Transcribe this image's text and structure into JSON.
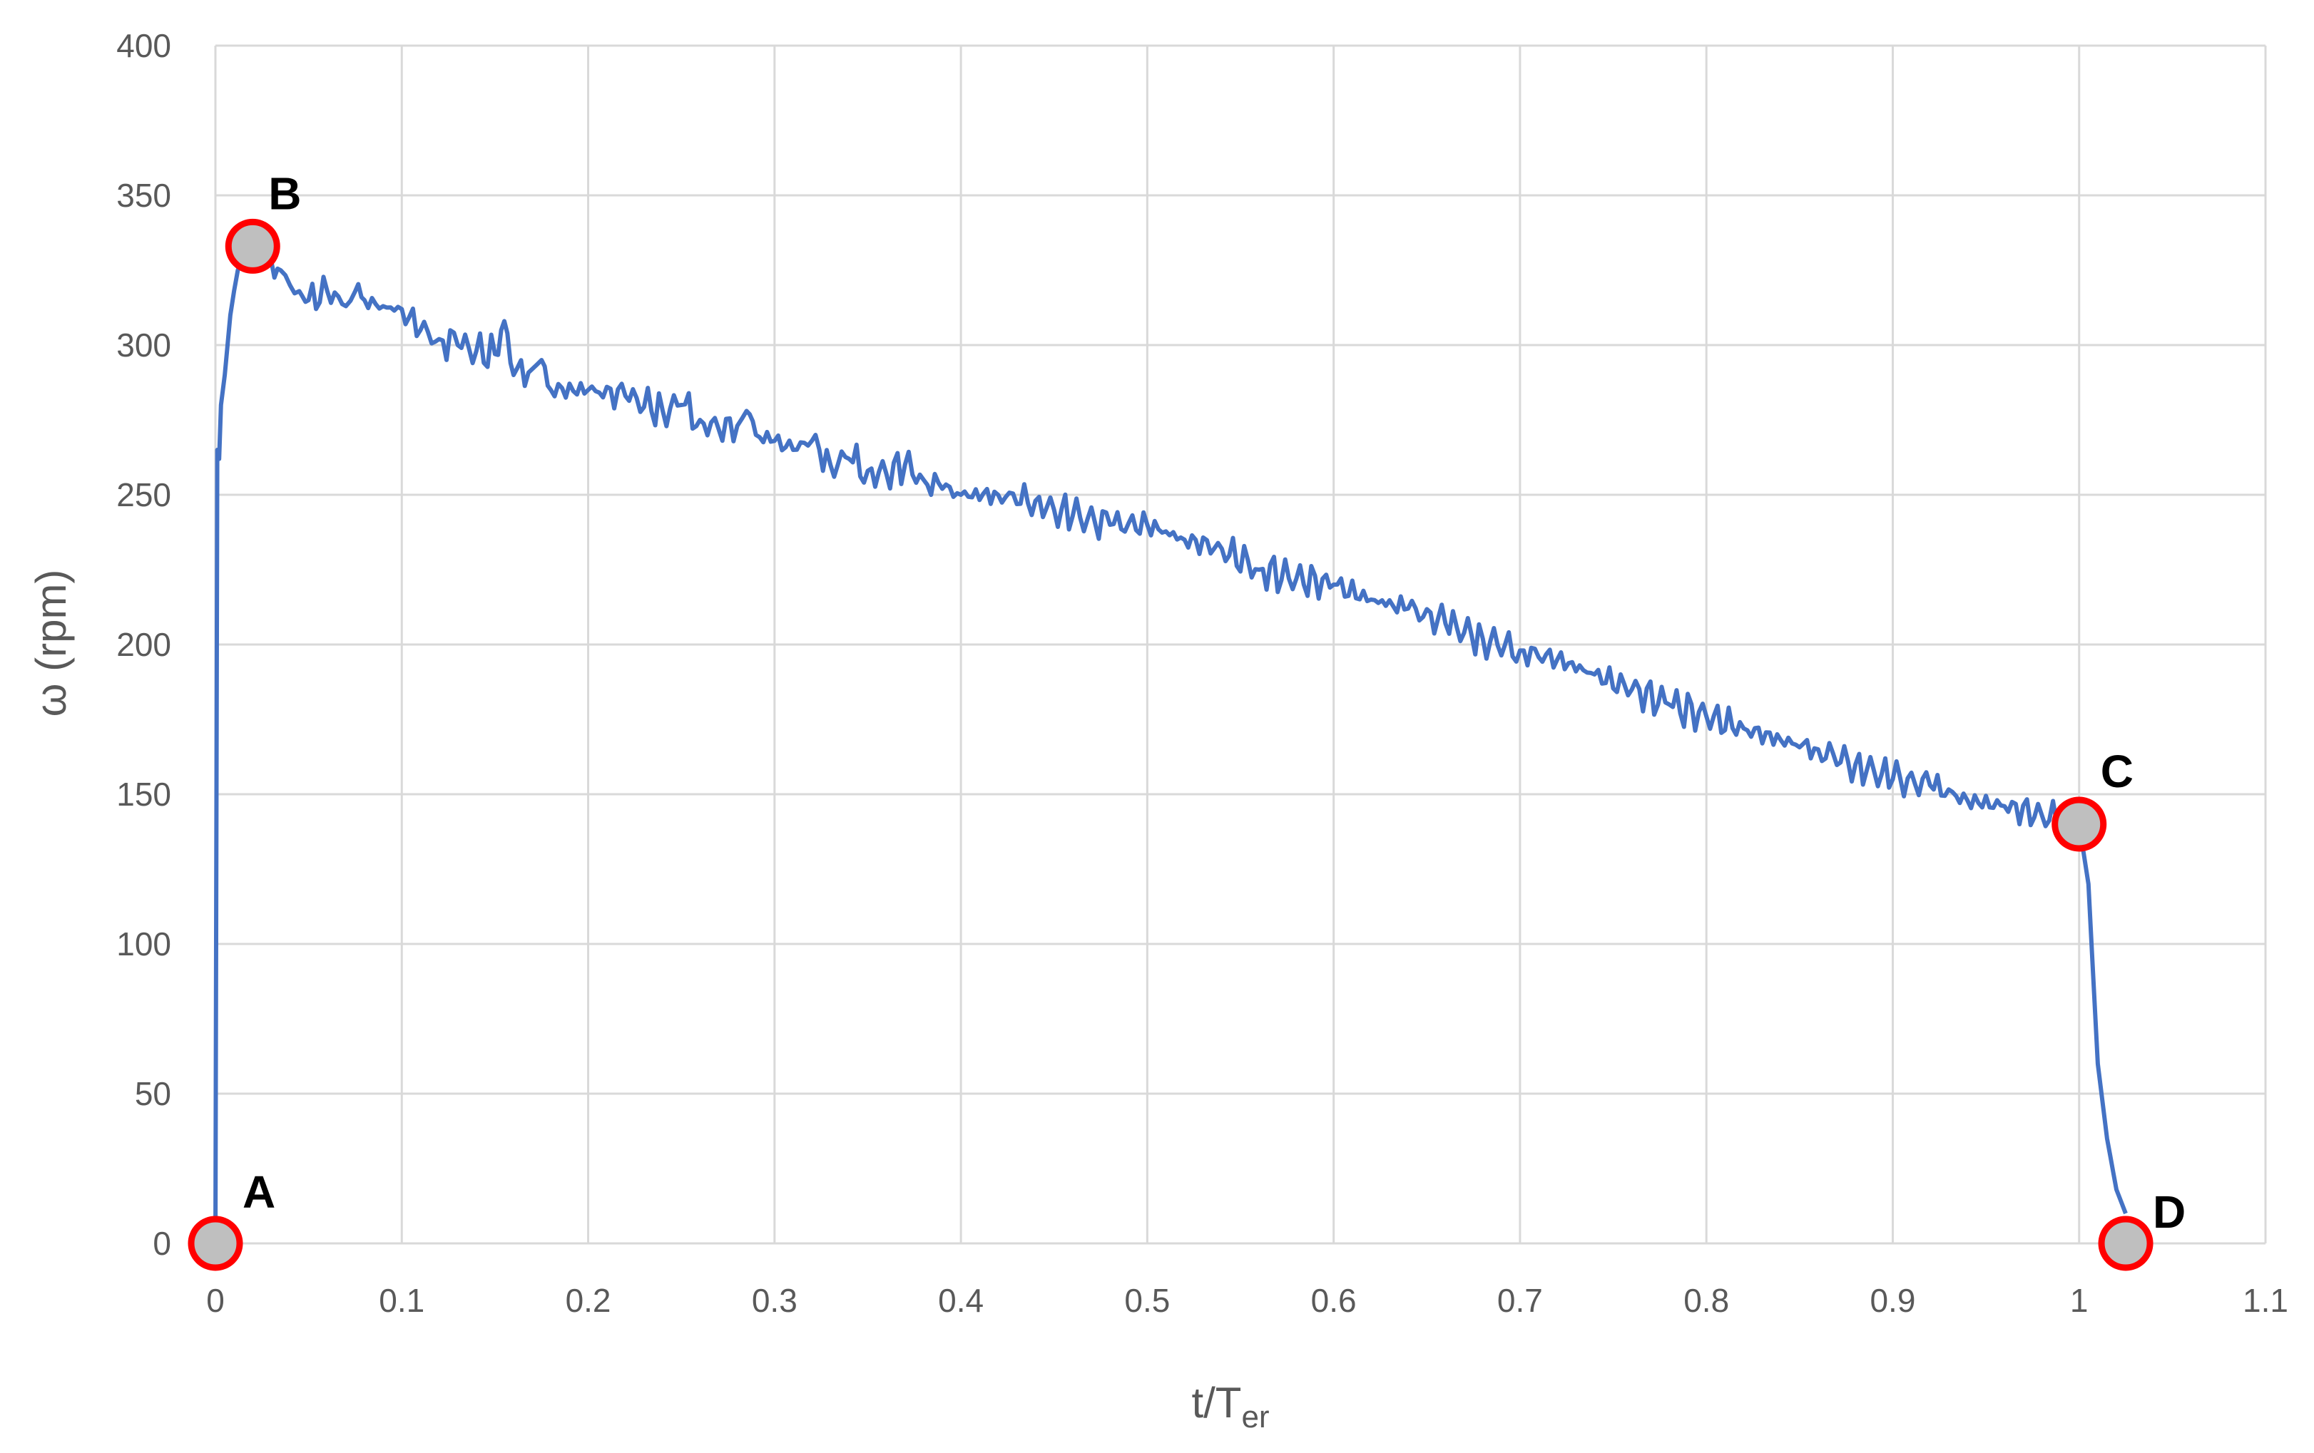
{
  "chart_data": {
    "type": "line",
    "title": "",
    "xlabel": "t/T",
    "xlabel_sub": "er",
    "ylabel": "ω (rpm)",
    "xlim": [
      0,
      1.1
    ],
    "ylim": [
      0,
      400
    ],
    "x_ticks": [
      0,
      0.1,
      0.2,
      0.3,
      0.4,
      0.5,
      0.6,
      0.7,
      0.8,
      0.9,
      1,
      1.1
    ],
    "x_tick_labels": [
      "0",
      "0.1",
      "0.2",
      "0.3",
      "0.4",
      "0.5",
      "0.6",
      "0.7",
      "0.8",
      "0.9",
      "1",
      "1.1"
    ],
    "y_ticks": [
      0,
      50,
      100,
      150,
      200,
      250,
      300,
      350,
      400
    ],
    "y_tick_labels": [
      "0",
      "50",
      "100",
      "150",
      "200",
      "250",
      "300",
      "350",
      "400"
    ],
    "grid": true,
    "legend": "none",
    "series": [
      {
        "color": "#4472C4",
        "x": [
          0,
          0.001,
          0.002,
          0.003,
          0.005,
          0.008,
          0.01,
          0.012,
          0.015,
          0.02,
          0.025,
          0.03,
          0.035,
          0.04,
          0.045,
          0.05,
          0.06,
          0.07,
          0.075,
          0.08,
          0.09,
          0.1,
          0.11,
          0.12,
          0.13,
          0.14,
          0.15,
          0.155,
          0.16,
          0.17,
          0.175,
          0.18,
          0.2,
          0.22,
          0.24,
          0.25,
          0.26,
          0.27,
          0.28,
          0.285,
          0.29,
          0.3,
          0.31,
          0.32,
          0.33,
          0.34,
          0.35,
          0.36,
          0.37,
          0.38,
          0.39,
          0.4,
          0.42,
          0.44,
          0.45,
          0.46,
          0.48,
          0.5,
          0.52,
          0.54,
          0.56,
          0.58,
          0.6,
          0.62,
          0.64,
          0.66,
          0.68,
          0.7,
          0.72,
          0.74,
          0.76,
          0.78,
          0.8,
          0.82,
          0.84,
          0.86,
          0.88,
          0.9,
          0.92,
          0.94,
          0.96,
          0.98,
          1.0,
          1.005,
          1.01,
          1.015,
          1.02,
          1.025
        ],
        "y": [
          0,
          265,
          262,
          280,
          290,
          310,
          318,
          325,
          330,
          333,
          330,
          328,
          325,
          320,
          318,
          315,
          318,
          313,
          318,
          315,
          313,
          312,
          305,
          302,
          300,
          298,
          297,
          308,
          290,
          292,
          295,
          285,
          285,
          283,
          278,
          280,
          275,
          272,
          273,
          278,
          270,
          268,
          265,
          268,
          260,
          262,
          258,
          257,
          260,
          255,
          252,
          250,
          250,
          248,
          245,
          243,
          240,
          240,
          235,
          232,
          225,
          222,
          220,
          215,
          212,
          207,
          202,
          198,
          195,
          190,
          185,
          180,
          176,
          172,
          168,
          165,
          160,
          155,
          153,
          148,
          146,
          143,
          140,
          120,
          60,
          35,
          18,
          10
        ]
      }
    ],
    "annotations": [
      {
        "label": "A",
        "x": 0,
        "y": 0
      },
      {
        "label": "B",
        "x": 0.02,
        "y": 333
      },
      {
        "label": "C",
        "x": 1.0,
        "y": 140
      },
      {
        "label": "D",
        "x": 1.025,
        "y": 0
      }
    ]
  }
}
